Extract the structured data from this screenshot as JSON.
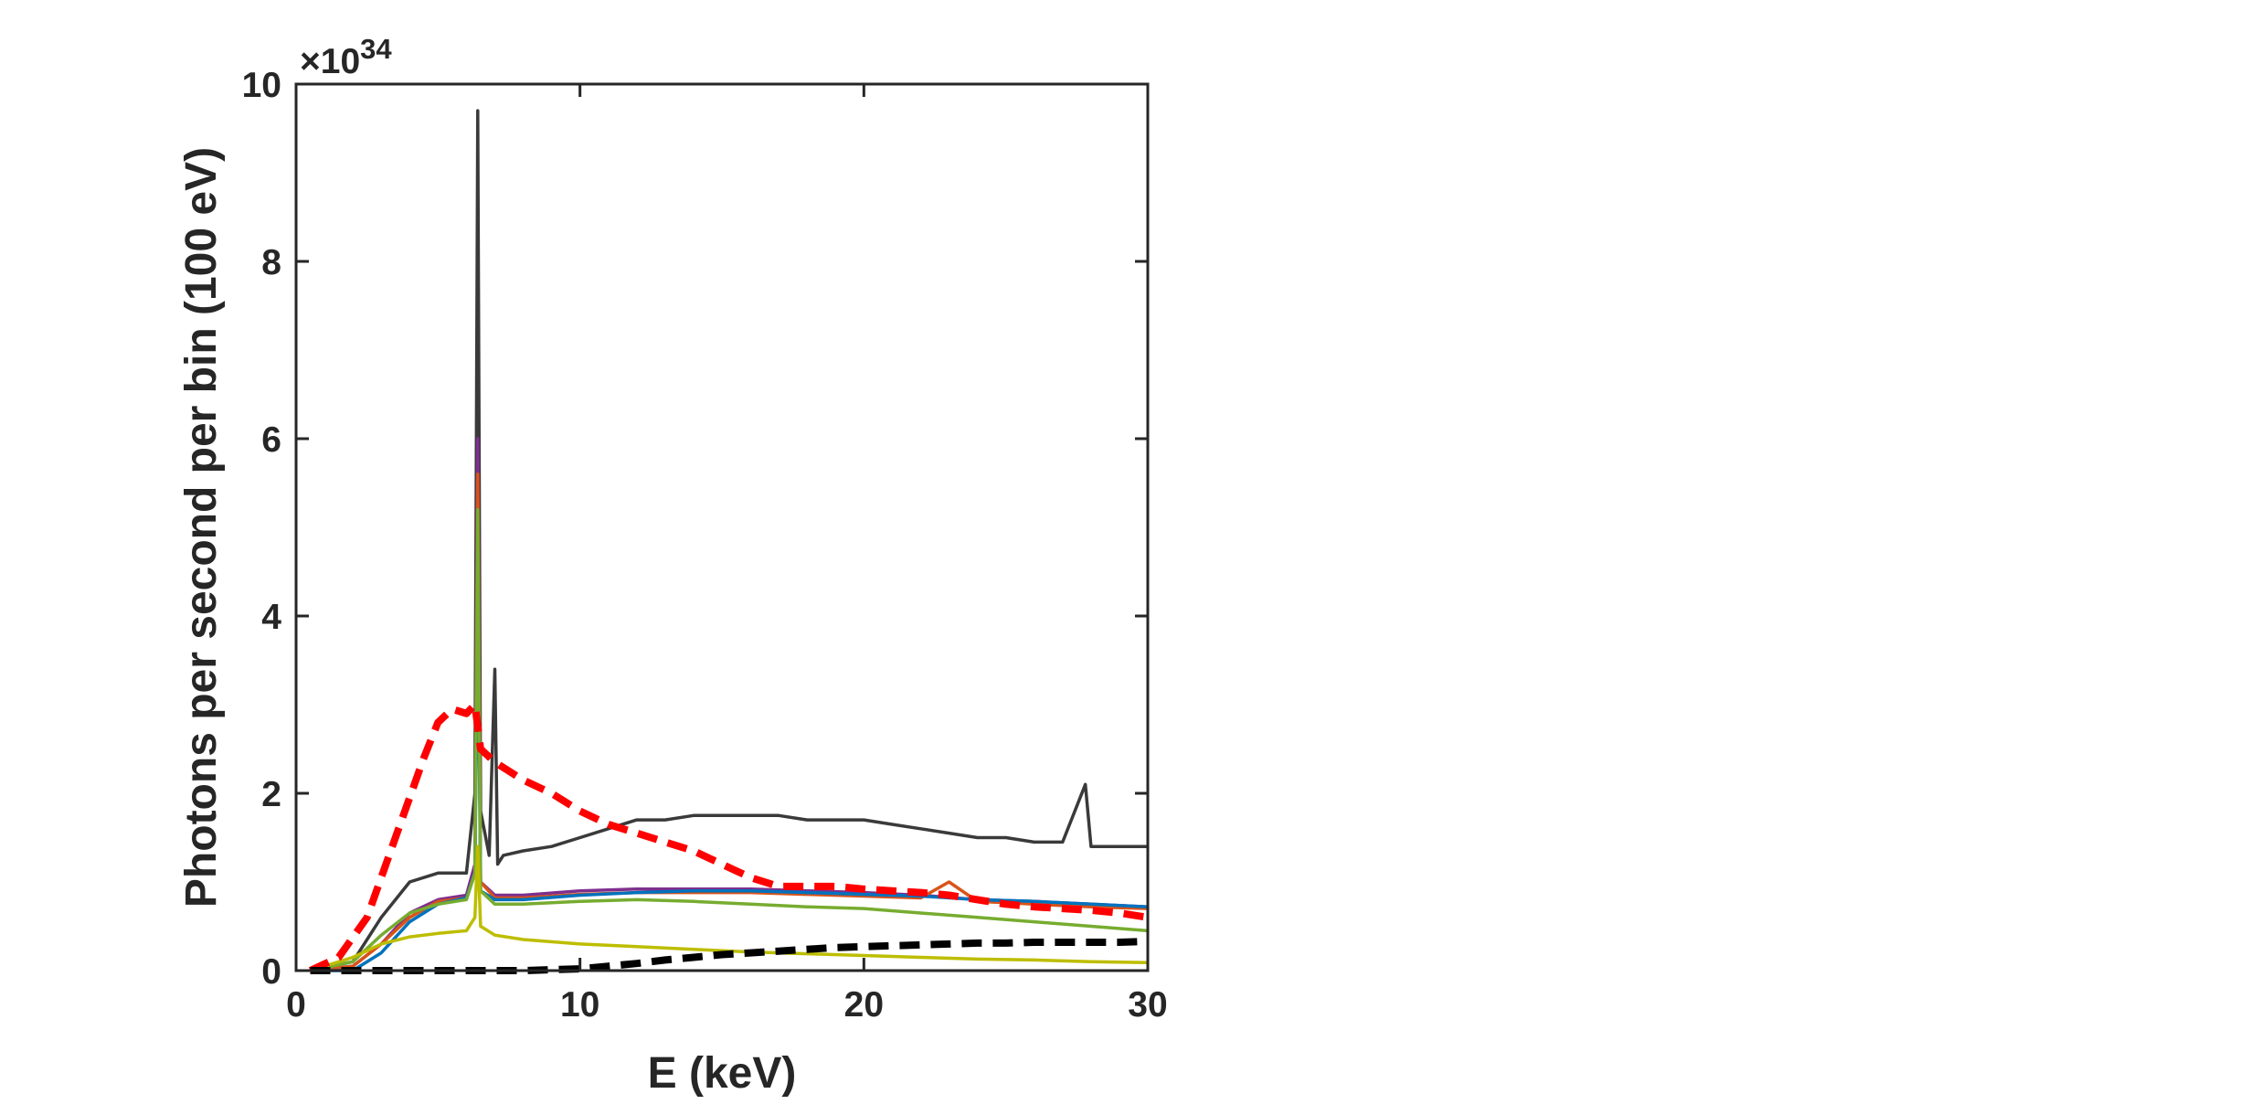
{
  "chart_data": {
    "type": "line",
    "title": "",
    "xlabel": "E (keV)",
    "ylabel": "Photons per second per bin (100 eV)",
    "xlim": [
      0,
      30
    ],
    "ylim": [
      0,
      10
    ],
    "y_multiplier": "×10",
    "y_multiplier_exponent": "34",
    "xticks": [
      "0",
      "10",
      "20",
      "30"
    ],
    "yticks": [
      "0",
      "2",
      "4",
      "6",
      "8",
      "10"
    ],
    "grid": false,
    "legend": "none",
    "series": [
      {
        "color": "#3a3a3a",
        "style": "solid",
        "x": [
          0.5,
          2,
          3,
          4,
          5,
          6,
          6.3,
          6.4,
          6.5,
          6.8,
          7.0,
          7.1,
          7.3,
          8,
          9,
          10,
          11,
          12,
          13,
          14,
          15,
          16,
          17,
          18,
          19,
          20,
          21,
          22,
          23,
          24,
          25,
          26,
          27,
          27.8,
          28,
          29,
          30
        ],
        "y": [
          0,
          0.1,
          0.6,
          1.0,
          1.1,
          1.1,
          2.0,
          9.7,
          1.8,
          1.3,
          3.4,
          1.2,
          1.3,
          1.35,
          1.4,
          1.5,
          1.6,
          1.7,
          1.7,
          1.75,
          1.75,
          1.75,
          1.75,
          1.7,
          1.7,
          1.7,
          1.65,
          1.6,
          1.55,
          1.5,
          1.5,
          1.45,
          1.45,
          2.1,
          1.4,
          1.4,
          1.4
        ]
      },
      {
        "color": "#7e2f8e",
        "style": "solid",
        "x": [
          0.5,
          2,
          3,
          4,
          5,
          6,
          6.3,
          6.4,
          6.5,
          7,
          8,
          10,
          12,
          14,
          16,
          18,
          20,
          22,
          24,
          26,
          28,
          30
        ],
        "y": [
          0,
          0.05,
          0.3,
          0.65,
          0.8,
          0.85,
          1.2,
          6.0,
          1.0,
          0.85,
          0.85,
          0.9,
          0.92,
          0.92,
          0.92,
          0.9,
          0.88,
          0.85,
          0.8,
          0.78,
          0.75,
          0.72
        ]
      },
      {
        "color": "#d95319",
        "style": "solid",
        "x": [
          0.5,
          2,
          3,
          4,
          5,
          6,
          6.3,
          6.4,
          6.5,
          7,
          8,
          10,
          12,
          14,
          16,
          18,
          20,
          22,
          23,
          24,
          26,
          28,
          30
        ],
        "y": [
          0,
          0.05,
          0.3,
          0.6,
          0.78,
          0.82,
          1.1,
          5.6,
          1.0,
          0.82,
          0.82,
          0.86,
          0.88,
          0.88,
          0.88,
          0.86,
          0.84,
          0.82,
          1.0,
          0.78,
          0.75,
          0.72,
          0.7
        ]
      },
      {
        "color": "#0072bd",
        "style": "solid",
        "x": [
          0.5,
          2,
          3,
          4,
          5,
          6,
          6.3,
          6.4,
          6.5,
          7,
          8,
          10,
          12,
          14,
          16,
          18,
          20,
          22,
          24,
          26,
          28,
          30
        ],
        "y": [
          0,
          0.0,
          0.2,
          0.55,
          0.75,
          0.82,
          1.1,
          4.2,
          0.9,
          0.8,
          0.8,
          0.85,
          0.88,
          0.9,
          0.9,
          0.88,
          0.86,
          0.84,
          0.8,
          0.78,
          0.75,
          0.72
        ]
      },
      {
        "color": "#77ac30",
        "style": "solid",
        "x": [
          0.5,
          2,
          3,
          4,
          5,
          6,
          6.3,
          6.4,
          6.5,
          7,
          8,
          10,
          12,
          14,
          16,
          18,
          20,
          22,
          24,
          26,
          28,
          30
        ],
        "y": [
          0,
          0.1,
          0.4,
          0.65,
          0.75,
          0.8,
          1.1,
          5.2,
          0.9,
          0.75,
          0.75,
          0.78,
          0.8,
          0.78,
          0.75,
          0.72,
          0.7,
          0.65,
          0.6,
          0.55,
          0.5,
          0.45
        ]
      },
      {
        "color": "#bdbd00",
        "style": "solid",
        "x": [
          0.5,
          2,
          3,
          4,
          5,
          6,
          6.3,
          6.4,
          6.5,
          7,
          8,
          10,
          12,
          14,
          16,
          18,
          20,
          22,
          24,
          26,
          28,
          30
        ],
        "y": [
          0,
          0.15,
          0.3,
          0.38,
          0.42,
          0.45,
          0.6,
          1.4,
          0.5,
          0.4,
          0.35,
          0.3,
          0.27,
          0.24,
          0.21,
          0.19,
          0.17,
          0.15,
          0.13,
          0.12,
          0.1,
          0.09
        ]
      },
      {
        "color": "#ff0000",
        "style": "dashed",
        "x": [
          0.5,
          1.5,
          2.5,
          3.5,
          4.5,
          5.0,
          5.5,
          6.0,
          6.3,
          6.5,
          7.0,
          8,
          9,
          10,
          11,
          12,
          13,
          14,
          15,
          16,
          17,
          18,
          19,
          20,
          21,
          22,
          23,
          24,
          25,
          26,
          27,
          28,
          29,
          30
        ],
        "y": [
          0,
          0.15,
          0.6,
          1.5,
          2.4,
          2.8,
          2.95,
          2.9,
          3.0,
          2.5,
          2.35,
          2.15,
          2.0,
          1.8,
          1.65,
          1.55,
          1.45,
          1.35,
          1.2,
          1.05,
          0.95,
          0.95,
          0.95,
          0.92,
          0.9,
          0.88,
          0.85,
          0.8,
          0.75,
          0.72,
          0.7,
          0.68,
          0.65,
          0.6
        ]
      },
      {
        "color": "#000000",
        "style": "dashed",
        "x": [
          0.5,
          5,
          8,
          10,
          11,
          12,
          13,
          14,
          15,
          16,
          17,
          18,
          19,
          20,
          21,
          22,
          23,
          24,
          25,
          26,
          27,
          28,
          29,
          30
        ],
        "y": [
          0,
          0,
          0,
          0.02,
          0.05,
          0.08,
          0.12,
          0.15,
          0.18,
          0.2,
          0.22,
          0.24,
          0.26,
          0.27,
          0.28,
          0.29,
          0.3,
          0.31,
          0.31,
          0.32,
          0.32,
          0.32,
          0.32,
          0.33
        ]
      }
    ]
  }
}
